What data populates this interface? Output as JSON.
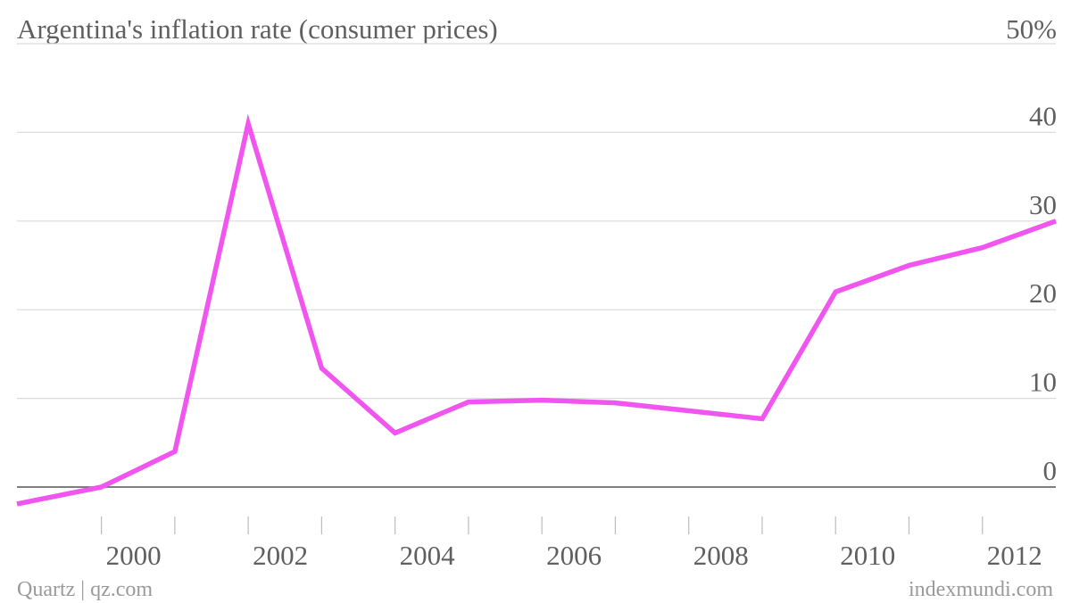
{
  "chart_data": {
    "type": "line",
    "title": "Argentina's inflation rate (consumer prices)",
    "y_unit_label": "50%",
    "x": [
      1999,
      2000,
      2001,
      2002,
      2003,
      2004,
      2005,
      2006,
      2007,
      2008,
      2009,
      2010,
      2011,
      2012,
      2013
    ],
    "series": [
      {
        "values": [
          -1.9,
          0.0,
          4.0,
          41.0,
          13.4,
          6.1,
          9.6,
          9.8,
          9.5,
          8.6,
          7.7,
          22.0,
          25.0,
          27.0,
          30.0
        ],
        "color": "#f055f0"
      }
    ],
    "ylim": [
      0,
      50
    ],
    "yticks": [
      "0",
      "10",
      "20",
      "30",
      "40"
    ],
    "xtick_labels": [
      "2000",
      "2002",
      "2004",
      "2006",
      "2008",
      "2010",
      "2012"
    ],
    "xtick_values": [
      2000,
      2002,
      2004,
      2006,
      2008,
      2010,
      2012
    ],
    "grid": true,
    "source_left": "Quartz | qz.com",
    "source_right": "indexmundi.com"
  }
}
